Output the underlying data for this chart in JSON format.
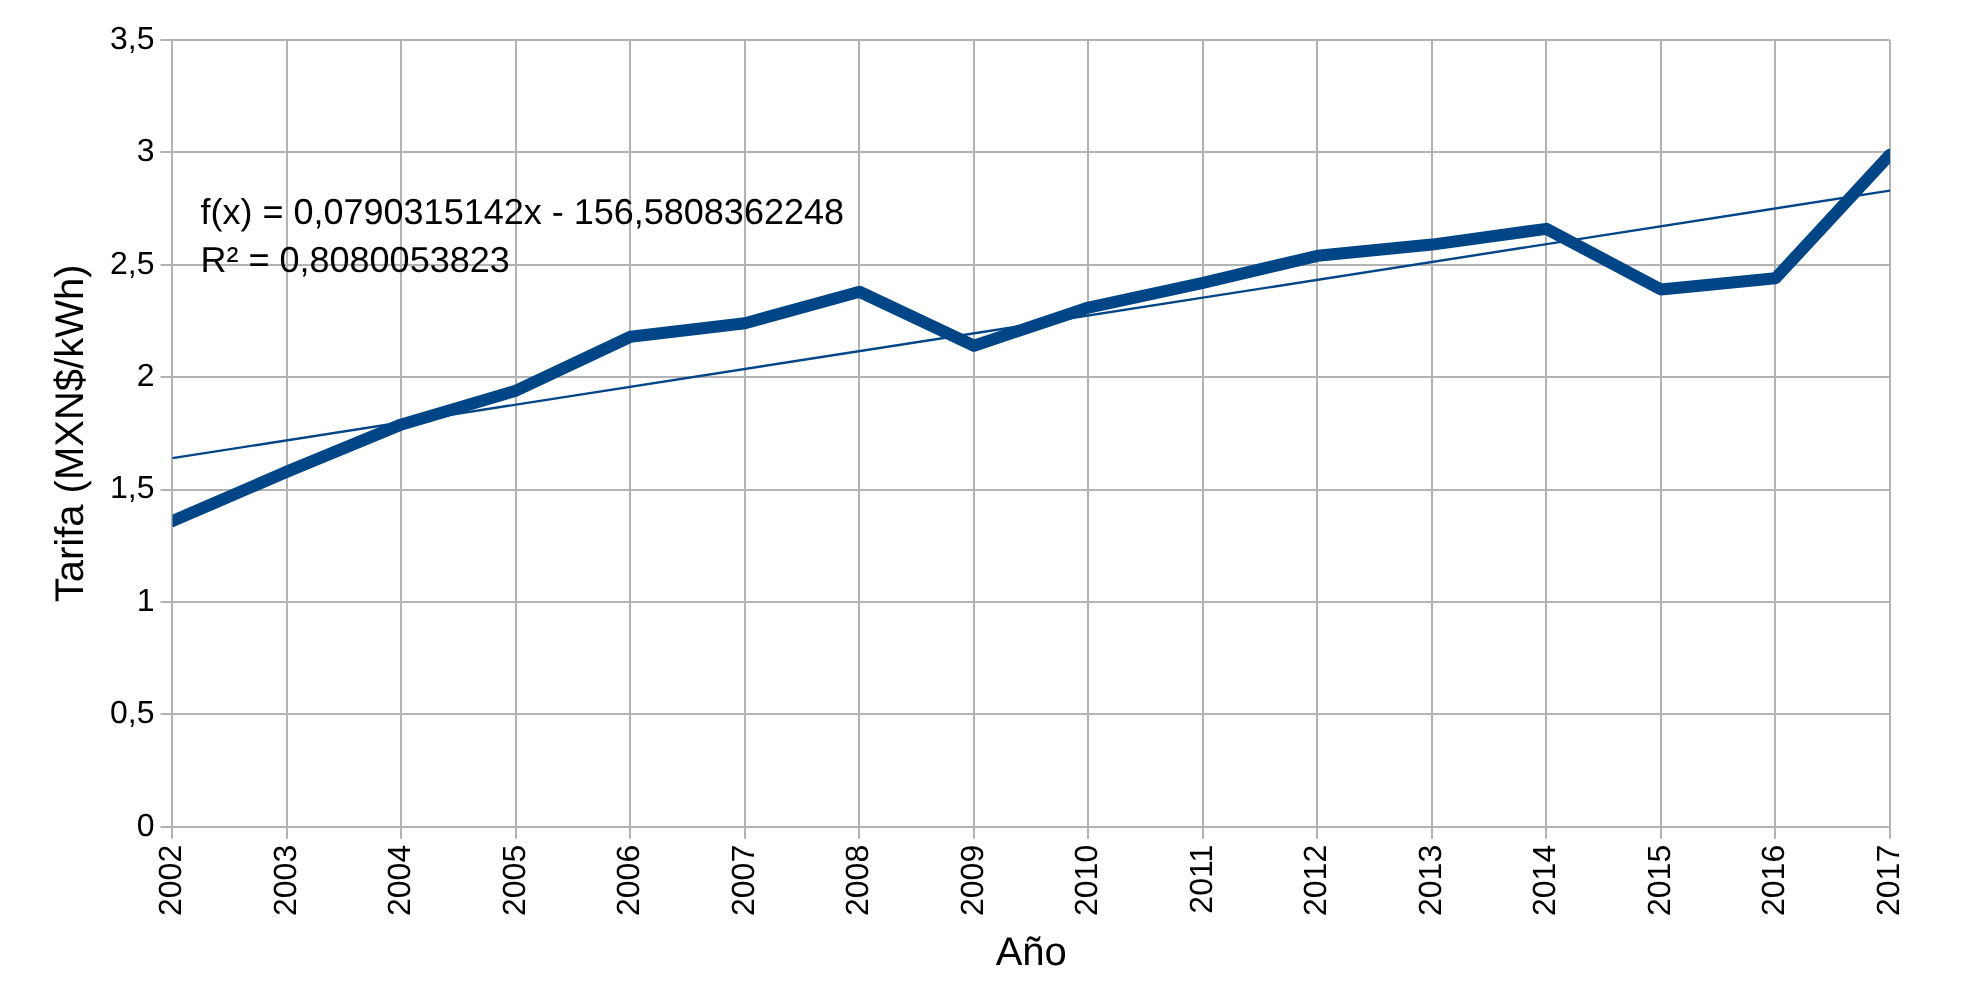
{
  "chart_data": {
    "type": "line",
    "xlabel": "Año",
    "ylabel": "Tarifa (MXN$/kWh)",
    "x": [
      2002,
      2003,
      2004,
      2005,
      2006,
      2007,
      2008,
      2009,
      2010,
      2011,
      2012,
      2013,
      2014,
      2015,
      2016,
      2017
    ],
    "series": [
      {
        "color": "#004586",
        "values": [
          1.36,
          1.58,
          1.79,
          1.94,
          2.18,
          2.24,
          2.38,
          2.14,
          2.31,
          2.42,
          2.54,
          2.59,
          2.66,
          2.39,
          2.44,
          2.99
        ]
      },
      {
        "type": "line",
        "color": "#004586",
        "x": [
          2002,
          2017
        ],
        "values": [
          1.64,
          2.83
        ]
      }
    ],
    "annotations": [
      "f(x) = 0,0790315142x - 156,5808362248",
      "R² = 0,8080053823"
    ],
    "xlim": [
      2002,
      2017
    ],
    "xticks": [
      2002,
      2003,
      2004,
      2005,
      2006,
      2007,
      2008,
      2009,
      2010,
      2011,
      2012,
      2013,
      2014,
      2015,
      2016,
      2017
    ],
    "ylim": [
      0,
      3.5
    ],
    "yticks": [
      0,
      {
        "value": 0.5,
        "label": "0,5"
      },
      1,
      {
        "value": 1.5,
        "label": "1,5"
      },
      2,
      {
        "value": 2.5,
        "label": "2,5"
      },
      3,
      {
        "value": 3.5,
        "label": "3,5"
      }
    ],
    "grid": true,
    "legend": false,
    "marker": "none",
    "line_style": "solid"
  }
}
